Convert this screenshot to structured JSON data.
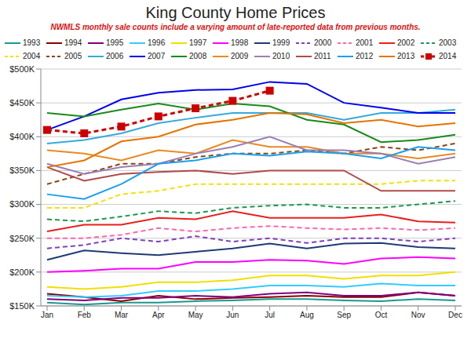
{
  "chart_data": {
    "type": "line",
    "title": "King County Home Prices",
    "subtitle": "NWMLS monthly sale counts include a varying amount of late-reported data from previous months.",
    "categories": [
      "Jan",
      "Feb",
      "Mar",
      "Apr",
      "May",
      "Jun",
      "Jul",
      "Aug",
      "Sep",
      "Oct",
      "Nov",
      "Dec"
    ],
    "ylim": [
      150000,
      500000
    ],
    "yticks": [
      {
        "value": 150000,
        "label": "$150K"
      },
      {
        "value": 200000,
        "label": "$200K"
      },
      {
        "value": 250000,
        "label": "$250K"
      },
      {
        "value": 300000,
        "label": "$300K"
      },
      {
        "value": 350000,
        "label": "$350K"
      },
      {
        "value": 400000,
        "label": "$400K"
      },
      {
        "value": 450000,
        "label": "$450K"
      },
      {
        "value": 500000,
        "label": "$500K"
      }
    ],
    "grid": true,
    "legend": "top",
    "series": [
      {
        "name": "1993",
        "color": "#1a9a8f",
        "line_style": "solid",
        "values": [
          155000,
          152000,
          155000,
          155000,
          157000,
          158000,
          160000,
          160000,
          158000,
          157000,
          160000,
          158000
        ]
      },
      {
        "name": "1994",
        "color": "#8b0000",
        "line_style": "solid",
        "values": [
          168000,
          163000,
          157000,
          165000,
          160000,
          162000,
          163000,
          165000,
          163000,
          163000,
          170000,
          165000
        ]
      },
      {
        "name": "1995",
        "color": "#800080",
        "line_style": "solid",
        "values": [
          160000,
          158000,
          162000,
          162000,
          165000,
          163000,
          168000,
          170000,
          165000,
          165000,
          170000,
          165000
        ]
      },
      {
        "name": "1996",
        "color": "#33ccff",
        "line_style": "solid",
        "values": [
          165000,
          163000,
          165000,
          172000,
          172000,
          175000,
          180000,
          180000,
          178000,
          183000,
          180000,
          180000
        ]
      },
      {
        "name": "1997",
        "color": "#f0e000",
        "line_style": "solid",
        "values": [
          178000,
          175000,
          178000,
          185000,
          185000,
          188000,
          195000,
          195000,
          190000,
          195000,
          195000,
          200000
        ]
      },
      {
        "name": "1998",
        "color": "#ff00ff",
        "line_style": "solid",
        "values": [
          200000,
          202000,
          205000,
          205000,
          215000,
          215000,
          218000,
          217000,
          212000,
          220000,
          222000,
          220000
        ]
      },
      {
        "name": "1999",
        "color": "#1f3a73",
        "line_style": "solid",
        "values": [
          218000,
          232000,
          228000,
          225000,
          230000,
          235000,
          242000,
          235000,
          242000,
          243000,
          237000,
          235000
        ]
      },
      {
        "name": "2000",
        "color": "#7f3fbf",
        "line_style": "dashed",
        "values": [
          235000,
          240000,
          250000,
          245000,
          253000,
          245000,
          250000,
          243000,
          250000,
          250000,
          245000,
          250000
        ]
      },
      {
        "name": "2001",
        "color": "#ff66aa",
        "line_style": "dashed",
        "values": [
          250000,
          250000,
          255000,
          265000,
          260000,
          265000,
          268000,
          265000,
          263000,
          265000,
          262000,
          265000
        ]
      },
      {
        "name": "2002",
        "color": "#e8201e",
        "line_style": "solid",
        "values": [
          260000,
          270000,
          270000,
          280000,
          278000,
          290000,
          280000,
          280000,
          280000,
          285000,
          275000,
          273000
        ]
      },
      {
        "name": "2003",
        "color": "#1a9a50",
        "line_style": "dashed",
        "values": [
          278000,
          275000,
          282000,
          290000,
          287000,
          295000,
          298000,
          300000,
          295000,
          295000,
          300000,
          305000
        ]
      },
      {
        "name": "2004",
        "color": "#f2e200",
        "line_style": "dashed",
        "values": [
          295000,
          295000,
          315000,
          320000,
          330000,
          330000,
          330000,
          330000,
          330000,
          330000,
          335000,
          335000
        ]
      },
      {
        "name": "2005",
        "color": "#8b4513",
        "line_style": "dashed",
        "values": [
          330000,
          345000,
          360000,
          360000,
          370000,
          375000,
          375000,
          380000,
          375000,
          385000,
          380000,
          390000
        ]
      },
      {
        "name": "2006",
        "color": "#33aadd",
        "line_style": "solid",
        "values": [
          390000,
          395000,
          405000,
          420000,
          428000,
          435000,
          435000,
          435000,
          425000,
          435000,
          435000,
          440000
        ]
      },
      {
        "name": "2007",
        "color": "#0000ee",
        "line_style": "solid",
        "values": [
          410000,
          430000,
          455000,
          465000,
          469000,
          470000,
          481000,
          478000,
          450000,
          443000,
          435000,
          435000
        ]
      },
      {
        "name": "2008",
        "color": "#1a8a1a",
        "line_style": "solid",
        "values": [
          435000,
          430000,
          440000,
          449000,
          440000,
          449000,
          445000,
          425000,
          418000,
          392000,
          395000,
          403000
        ]
      },
      {
        "name": "2009",
        "color": "#e88a20",
        "line_style": "solid",
        "values": [
          380000,
          375000,
          365000,
          380000,
          375000,
          395000,
          385000,
          385000,
          375000,
          375000,
          368000,
          375000
        ]
      },
      {
        "name": "2010",
        "color": "#9a7fb5",
        "line_style": "solid",
        "values": [
          360000,
          345000,
          355000,
          360000,
          375000,
          385000,
          400000,
          380000,
          380000,
          375000,
          360000,
          370000
        ]
      },
      {
        "name": "2011",
        "color": "#b04a4a",
        "line_style": "solid",
        "values": [
          355000,
          335000,
          345000,
          348000,
          350000,
          345000,
          350000,
          350000,
          350000,
          320000,
          320000,
          320000
        ]
      },
      {
        "name": "2012",
        "color": "#1aa0ee",
        "line_style": "solid",
        "values": [
          315000,
          308000,
          330000,
          360000,
          365000,
          375000,
          372000,
          378000,
          375000,
          368000,
          385000,
          380000
        ]
      },
      {
        "name": "2013",
        "color": "#e67300",
        "line_style": "solid",
        "values": [
          355000,
          365000,
          393000,
          400000,
          418000,
          425000,
          435000,
          433000,
          420000,
          425000,
          415000,
          420000
        ]
      },
      {
        "name": "2014",
        "color": "#cc0000",
        "line_style": "dashed",
        "marker": "square",
        "values": [
          410000,
          405000,
          415000,
          430000,
          442000,
          453000,
          468000,
          null,
          null,
          null,
          null,
          null
        ]
      }
    ]
  }
}
